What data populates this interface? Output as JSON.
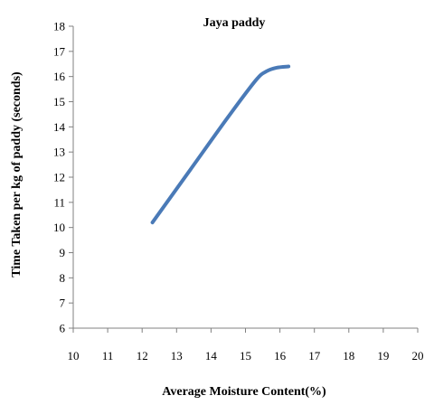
{
  "chart_data": {
    "type": "line",
    "title": "Jaya paddy",
    "xlabel": "Average Moisture Content(%)",
    "ylabel": "Time Taken per kg of paddy (seconds)",
    "xlim": [
      10,
      20
    ],
    "ylim": [
      6,
      18
    ],
    "xticks": [
      10,
      11,
      12,
      13,
      14,
      15,
      16,
      17,
      18,
      19,
      20
    ],
    "yticks": [
      6,
      7,
      8,
      9,
      10,
      11,
      12,
      13,
      14,
      15,
      16,
      17,
      18
    ],
    "grid": false,
    "legend": "none",
    "series": [
      {
        "color": "#4a7ab7",
        "points": [
          {
            "x": 12.3,
            "y": 10.2
          },
          {
            "x": 13.4,
            "y": 12.3
          },
          {
            "x": 14.5,
            "y": 14.4
          },
          {
            "x": 15.3,
            "y": 15.85
          },
          {
            "x": 15.6,
            "y": 16.2
          },
          {
            "x": 15.9,
            "y": 16.35
          },
          {
            "x": 16.25,
            "y": 16.4
          }
        ]
      }
    ]
  }
}
